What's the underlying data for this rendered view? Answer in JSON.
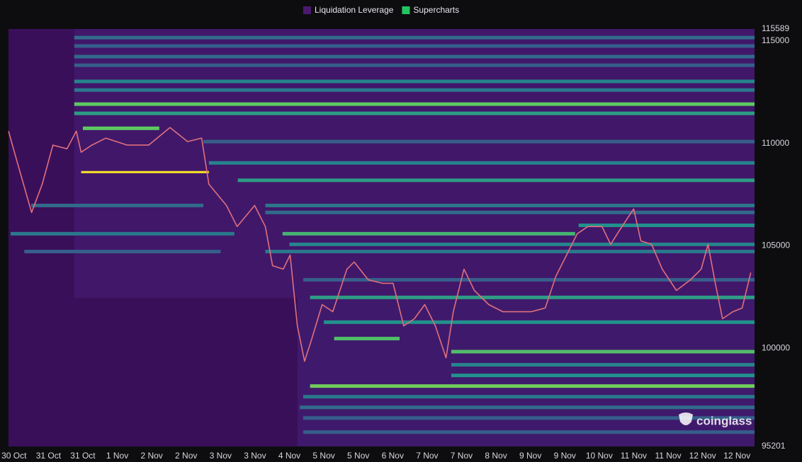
{
  "chart_data": {
    "type": "heatmap",
    "legend": [
      {
        "name": "Liquidation Leverage",
        "color": "#4b1a6e"
      },
      {
        "name": "Supercharts",
        "color": "#22c55e"
      }
    ],
    "watermark": "coinglass",
    "xlim": [
      -0.16,
      21.51
    ],
    "xticks": [
      {
        "value": 0,
        "label": "30 Oct"
      },
      {
        "value": 1,
        "label": "31 Oct"
      },
      {
        "value": 2,
        "label": "31 Oct"
      },
      {
        "value": 3,
        "label": "1 Nov"
      },
      {
        "value": 4,
        "label": "2 Nov"
      },
      {
        "value": 5,
        "label": "2 Nov"
      },
      {
        "value": 6,
        "label": "3 Nov"
      },
      {
        "value": 7,
        "label": "3 Nov"
      },
      {
        "value": 8,
        "label": "4 Nov"
      },
      {
        "value": 9,
        "label": "5 Nov"
      },
      {
        "value": 10,
        "label": "5 Nov"
      },
      {
        "value": 11,
        "label": "6 Nov"
      },
      {
        "value": 12,
        "label": "7 Nov"
      },
      {
        "value": 13,
        "label": "7 Nov"
      },
      {
        "value": 14,
        "label": "8 Nov"
      },
      {
        "value": 15,
        "label": "9 Nov"
      },
      {
        "value": 16,
        "label": "9 Nov"
      },
      {
        "value": 17,
        "label": "10 Nov"
      },
      {
        "value": 18,
        "label": "11 Nov"
      },
      {
        "value": 19,
        "label": "11 Nov"
      },
      {
        "value": 20,
        "label": "12 Nov"
      },
      {
        "value": 21,
        "label": "12 Nov"
      }
    ],
    "ylim": [
      95201,
      115589
    ],
    "yticks": [
      95201,
      100000,
      105000,
      110000,
      115000,
      115589
    ],
    "grid": false,
    "bands": [
      {
        "price": 115170,
        "start": 1.75,
        "intensity": 0.35
      },
      {
        "price": 114760,
        "start": 1.75,
        "intensity": 0.3
      },
      {
        "price": 114240,
        "start": 1.75,
        "intensity": 0.35
      },
      {
        "price": 113820,
        "start": 1.75,
        "intensity": 0.3
      },
      {
        "price": 113030,
        "start": 1.75,
        "intensity": 0.45
      },
      {
        "price": 112610,
        "start": 1.75,
        "intensity": 0.4
      },
      {
        "price": 111920,
        "start": 1.75,
        "intensity": 0.75
      },
      {
        "price": 111470,
        "start": 1.75,
        "intensity": 0.55
      },
      {
        "price": 110740,
        "start": 2.0,
        "end": 4.22,
        "intensity": 0.75
      },
      {
        "price": 110090,
        "start": 5.5,
        "intensity": 0.3
      },
      {
        "price": 109050,
        "start": 5.66,
        "intensity": 0.45
      },
      {
        "price": 108200,
        "start": 6.5,
        "intensity": 0.55
      },
      {
        "price": 106970,
        "start": 7.3,
        "intensity": 0.4
      },
      {
        "price": 106630,
        "start": 7.3,
        "intensity": 0.35
      },
      {
        "price": 106000,
        "start": 16.4,
        "intensity": 0.5
      },
      {
        "price": 105590,
        "start": 7.8,
        "end": 16.3,
        "intensity": 0.65
      },
      {
        "price": 105070,
        "start": 8.0,
        "intensity": 0.45
      },
      {
        "price": 104720,
        "start": 7.3,
        "intensity": 0.4
      },
      {
        "price": 103340,
        "start": 8.4,
        "intensity": 0.3
      },
      {
        "price": 102480,
        "start": 8.6,
        "intensity": 0.55
      },
      {
        "price": 101270,
        "start": 9.0,
        "intensity": 0.5
      },
      {
        "price": 100470,
        "start": 9.3,
        "end": 11.2,
        "intensity": 0.7
      },
      {
        "price": 99830,
        "start": 12.7,
        "intensity": 0.7
      },
      {
        "price": 99190,
        "start": 12.7,
        "intensity": 0.45
      },
      {
        "price": 98670,
        "start": 12.7,
        "intensity": 0.5
      },
      {
        "price": 98150,
        "start": 8.6,
        "intensity": 0.78
      },
      {
        "price": 97630,
        "start": 8.4,
        "intensity": 0.4
      },
      {
        "price": 97110,
        "start": 8.3,
        "intensity": 0.35
      },
      {
        "price": 96590,
        "start": 8.4,
        "intensity": 0.3
      },
      {
        "price": 95900,
        "start": 8.4,
        "intensity": 0.3
      },
      {
        "price": 105590,
        "start": -0.1,
        "end": 6.4,
        "intensity": 0.4
      },
      {
        "price": 104720,
        "start": 0.3,
        "end": 6.0,
        "intensity": 0.3
      },
      {
        "price": 106970,
        "start": 0.5,
        "end": 5.5,
        "intensity": 0.35
      },
      {
        "price": 108600,
        "start": 1.95,
        "end": 5.66,
        "intensity": 1.0
      }
    ],
    "series": [
      {
        "name": "Price",
        "color": "#e0707c",
        "x": [
          -0.16,
          0.1,
          0.51,
          0.82,
          1.13,
          1.54,
          1.81,
          1.95,
          2.26,
          2.67,
          3.29,
          3.91,
          4.53,
          5.04,
          5.45,
          5.66,
          6.17,
          6.48,
          6.99,
          7.3,
          7.51,
          7.82,
          8.02,
          8.23,
          8.44,
          8.64,
          8.95,
          9.26,
          9.67,
          9.88,
          10.29,
          10.7,
          11.01,
          11.32,
          11.63,
          11.93,
          12.24,
          12.55,
          12.76,
          13.07,
          13.37,
          13.79,
          14.2,
          14.61,
          15.02,
          15.43,
          15.74,
          16.05,
          16.36,
          16.67,
          17.08,
          17.33,
          17.59,
          18.0,
          18.21,
          18.52,
          18.83,
          19.24,
          19.65,
          19.96,
          20.16,
          20.37,
          20.58,
          20.88,
          21.15,
          21.4
        ],
        "values": [
          110600,
          109050,
          106630,
          108010,
          109920,
          109740,
          110600,
          109570,
          109920,
          110260,
          109920,
          109920,
          110780,
          110090,
          110260,
          108010,
          106970,
          105940,
          106970,
          105940,
          104030,
          103860,
          104550,
          101090,
          99360,
          100400,
          102130,
          101780,
          103860,
          104210,
          103340,
          103170,
          103170,
          101090,
          101440,
          102130,
          101090,
          99530,
          101780,
          103860,
          102820,
          102130,
          101780,
          101780,
          101780,
          101960,
          103510,
          104550,
          105590,
          105940,
          105940,
          105070,
          105760,
          106800,
          105240,
          105070,
          103860,
          102820,
          103340,
          103860,
          105070,
          103170,
          101440,
          101780,
          101960,
          103690
        ]
      }
    ]
  }
}
